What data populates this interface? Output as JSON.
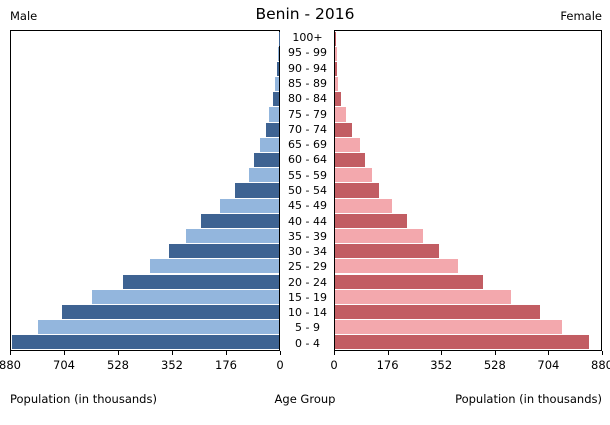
{
  "header": {
    "title": "Benin - 2016",
    "left_label": "Male",
    "right_label": "Female"
  },
  "footer": {
    "left_caption": "Population (in thousands)",
    "center_caption": "Age Group",
    "right_caption": "Population (in thousands)"
  },
  "chart_data": {
    "type": "bar",
    "subtype": "population-pyramid",
    "title": "Benin - 2016",
    "xlabel_left": "Population (in thousands)",
    "xlabel_right": "Population (in thousands)",
    "center_axis_label": "Age Group",
    "age_groups": [
      "100+",
      "95 - 99",
      "90 - 94",
      "85 - 89",
      "80 - 84",
      "75 - 79",
      "70 - 74",
      "65 - 69",
      "60 - 64",
      "55 - 59",
      "50 - 54",
      "45 - 49",
      "40 - 44",
      "35 - 39",
      "30 - 34",
      "25 - 29",
      "20 - 24",
      "15 - 19",
      "10 - 14",
      "5 - 9",
      "0 - 4"
    ],
    "series": [
      {
        "name": "Male",
        "values": [
          1,
          4,
          8,
          14,
          21,
          33,
          44,
          62,
          81,
          100,
          143,
          195,
          257,
          305,
          360,
          423,
          513,
          615,
          712,
          792,
          878
        ]
      },
      {
        "name": "Female",
        "values": [
          2,
          5,
          8,
          11,
          20,
          35,
          56,
          82,
          98,
          121,
          146,
          187,
          239,
          291,
          343,
          407,
          488,
          582,
          678,
          752,
          840
        ]
      }
    ],
    "x_ticks": [
      0,
      176,
      352,
      528,
      704,
      880
    ],
    "xmax": 880,
    "grid": false,
    "legend": "none",
    "colors": {
      "male_dark": "#3e6392",
      "male_light": "#93b6dd",
      "female_dark": "#c25d63",
      "female_light": "#f3a8ad",
      "border": "#000000",
      "background": "#ffffff"
    }
  }
}
